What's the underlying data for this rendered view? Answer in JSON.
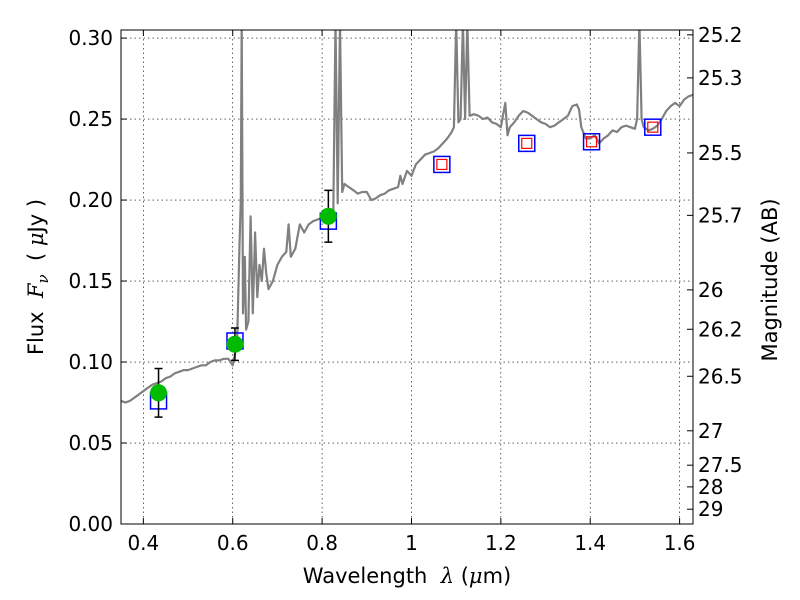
{
  "chart_data": {
    "type": "scatter",
    "xlabel": {
      "prefix": "Wavelength  ",
      "symbol": "λ",
      "unit_open": " (",
      "unit_mu": "μ",
      "unit_close": "m)"
    },
    "ylabel": {
      "prefix": "Flux  ",
      "symbol": "F",
      "subscript": "ν",
      "middle": "  ( ",
      "mu": "μ",
      "suffix": "Jy )"
    },
    "ylabel_right": "Magnitude (AB)",
    "xlim": [
      0.35,
      1.63
    ],
    "ylim": [
      0.0,
      0.305
    ],
    "x_ticks": [
      {
        "value": 0.4,
        "label": "0.4"
      },
      {
        "value": 0.6,
        "label": "0.6"
      },
      {
        "value": 0.8,
        "label": "0.8"
      },
      {
        "value": 1.0,
        "label": "1"
      },
      {
        "value": 1.2,
        "label": "1.2"
      },
      {
        "value": 1.4,
        "label": "1.4"
      },
      {
        "value": 1.6,
        "label": "1.6"
      }
    ],
    "y_ticks": [
      {
        "value": 0.0,
        "label": "0.00"
      },
      {
        "value": 0.05,
        "label": "0.05"
      },
      {
        "value": 0.1,
        "label": "0.10"
      },
      {
        "value": 0.15,
        "label": "0.15"
      },
      {
        "value": 0.2,
        "label": "0.20"
      },
      {
        "value": 0.25,
        "label": "0.25"
      },
      {
        "value": 0.3,
        "label": "0.30"
      }
    ],
    "right_ticks": [
      {
        "mag": 25.2,
        "label": "25.2"
      },
      {
        "mag": 25.3,
        "label": "25.3"
      },
      {
        "mag": 25.5,
        "label": "25.5"
      },
      {
        "mag": 25.7,
        "label": "25.7"
      },
      {
        "mag": 26,
        "label": "26"
      },
      {
        "mag": 26.2,
        "label": "26.2"
      },
      {
        "mag": 26.5,
        "label": "26.5"
      },
      {
        "mag": 27,
        "label": "27"
      },
      {
        "mag": 27.5,
        "label": "27.5"
      },
      {
        "mag": 28,
        "label": "28"
      },
      {
        "mag": 29,
        "label": "29"
      }
    ],
    "grid": true,
    "grid_style": "dotted",
    "colors": {
      "model": "#808080",
      "observed": "#00bb00",
      "model_box": "#0000ff",
      "inner_box": "#ff0000",
      "errorbar": "#000000"
    },
    "series": [
      {
        "type": "line",
        "points": [
          [
            0.35,
            0.076
          ],
          [
            0.36,
            0.075
          ],
          [
            0.37,
            0.076
          ],
          [
            0.38,
            0.078
          ],
          [
            0.39,
            0.08
          ],
          [
            0.4,
            0.082
          ],
          [
            0.41,
            0.084
          ],
          [
            0.42,
            0.086
          ],
          [
            0.43,
            0.087
          ],
          [
            0.44,
            0.088
          ],
          [
            0.45,
            0.09
          ],
          [
            0.46,
            0.091
          ],
          [
            0.47,
            0.093
          ],
          [
            0.48,
            0.094
          ],
          [
            0.49,
            0.095
          ],
          [
            0.5,
            0.095
          ],
          [
            0.51,
            0.096
          ],
          [
            0.52,
            0.097
          ],
          [
            0.53,
            0.098
          ],
          [
            0.54,
            0.098
          ],
          [
            0.55,
            0.1
          ],
          [
            0.56,
            0.101
          ],
          [
            0.57,
            0.101
          ],
          [
            0.58,
            0.102
          ],
          [
            0.59,
            0.102
          ],
          [
            0.595,
            0.1
          ],
          [
            0.6,
            0.098
          ],
          [
            0.605,
            0.105
          ],
          [
            0.61,
            0.115
          ],
          [
            0.615,
            0.17
          ],
          [
            0.618,
            0.2
          ],
          [
            0.62,
            0.31
          ],
          [
            0.623,
            0.13
          ],
          [
            0.627,
            0.165
          ],
          [
            0.63,
            0.12
          ],
          [
            0.635,
            0.125
          ],
          [
            0.64,
            0.19
          ],
          [
            0.645,
            0.13
          ],
          [
            0.65,
            0.18
          ],
          [
            0.655,
            0.14
          ],
          [
            0.66,
            0.16
          ],
          [
            0.665,
            0.15
          ],
          [
            0.67,
            0.17
          ],
          [
            0.675,
            0.155
          ],
          [
            0.68,
            0.145
          ],
          [
            0.69,
            0.15
          ],
          [
            0.7,
            0.16
          ],
          [
            0.71,
            0.165
          ],
          [
            0.72,
            0.168
          ],
          [
            0.725,
            0.185
          ],
          [
            0.73,
            0.165
          ],
          [
            0.74,
            0.17
          ],
          [
            0.75,
            0.185
          ],
          [
            0.76,
            0.18
          ],
          [
            0.77,
            0.185
          ],
          [
            0.78,
            0.187
          ],
          [
            0.79,
            0.188
          ],
          [
            0.8,
            0.189
          ],
          [
            0.81,
            0.19
          ],
          [
            0.82,
            0.19
          ],
          [
            0.825,
            0.192
          ],
          [
            0.83,
            0.31
          ],
          [
            0.835,
            0.198
          ],
          [
            0.84,
            0.31
          ],
          [
            0.845,
            0.205
          ],
          [
            0.85,
            0.21
          ],
          [
            0.86,
            0.208
          ],
          [
            0.87,
            0.206
          ],
          [
            0.88,
            0.204
          ],
          [
            0.89,
            0.205
          ],
          [
            0.9,
            0.205
          ],
          [
            0.91,
            0.2
          ],
          [
            0.92,
            0.201
          ],
          [
            0.93,
            0.203
          ],
          [
            0.94,
            0.204
          ],
          [
            0.95,
            0.206
          ],
          [
            0.96,
            0.207
          ],
          [
            0.97,
            0.208
          ],
          [
            0.975,
            0.215
          ],
          [
            0.98,
            0.21
          ],
          [
            0.99,
            0.218
          ],
          [
            1.0,
            0.215
          ],
          [
            1.01,
            0.222
          ],
          [
            1.02,
            0.225
          ],
          [
            1.03,
            0.228
          ],
          [
            1.04,
            0.229
          ],
          [
            1.05,
            0.23
          ],
          [
            1.06,
            0.232
          ],
          [
            1.07,
            0.235
          ],
          [
            1.08,
            0.238
          ],
          [
            1.09,
            0.242
          ],
          [
            1.095,
            0.245
          ],
          [
            1.1,
            0.31
          ],
          [
            1.105,
            0.248
          ],
          [
            1.11,
            0.25
          ],
          [
            1.115,
            0.31
          ],
          [
            1.12,
            0.25
          ],
          [
            1.125,
            0.31
          ],
          [
            1.13,
            0.252
          ],
          [
            1.14,
            0.253
          ],
          [
            1.15,
            0.252
          ],
          [
            1.16,
            0.25
          ],
          [
            1.17,
            0.251
          ],
          [
            1.18,
            0.248
          ],
          [
            1.19,
            0.247
          ],
          [
            1.2,
            0.245
          ],
          [
            1.21,
            0.26
          ],
          [
            1.215,
            0.24
          ],
          [
            1.22,
            0.245
          ],
          [
            1.23,
            0.248
          ],
          [
            1.24,
            0.252
          ],
          [
            1.25,
            0.255
          ],
          [
            1.26,
            0.254
          ],
          [
            1.27,
            0.252
          ],
          [
            1.28,
            0.25
          ],
          [
            1.29,
            0.248
          ],
          [
            1.3,
            0.247
          ],
          [
            1.31,
            0.245
          ],
          [
            1.32,
            0.246
          ],
          [
            1.33,
            0.248
          ],
          [
            1.34,
            0.25
          ],
          [
            1.35,
            0.252
          ],
          [
            1.36,
            0.258
          ],
          [
            1.37,
            0.259
          ],
          [
            1.375,
            0.256
          ],
          [
            1.38,
            0.245
          ],
          [
            1.39,
            0.238
          ],
          [
            1.4,
            0.238
          ],
          [
            1.41,
            0.24
          ],
          [
            1.42,
            0.235
          ],
          [
            1.43,
            0.238
          ],
          [
            1.44,
            0.24
          ],
          [
            1.45,
            0.243
          ],
          [
            1.46,
            0.242
          ],
          [
            1.47,
            0.245
          ],
          [
            1.48,
            0.246
          ],
          [
            1.49,
            0.245
          ],
          [
            1.5,
            0.244
          ],
          [
            1.505,
            0.25
          ],
          [
            1.51,
            0.31
          ],
          [
            1.515,
            0.25
          ],
          [
            1.52,
            0.245
          ],
          [
            1.53,
            0.243
          ],
          [
            1.54,
            0.244
          ],
          [
            1.55,
            0.246
          ],
          [
            1.56,
            0.25
          ],
          [
            1.57,
            0.255
          ],
          [
            1.58,
            0.258
          ],
          [
            1.59,
            0.26
          ],
          [
            1.6,
            0.258
          ],
          [
            1.61,
            0.262
          ],
          [
            1.62,
            0.264
          ],
          [
            1.63,
            0.265
          ]
        ]
      },
      {
        "type": "scatter",
        "marker": "circle",
        "points": [
          {
            "x": 0.434,
            "y": 0.081,
            "yerr": 0.015
          },
          {
            "x": 0.605,
            "y": 0.111,
            "yerr": 0.01
          },
          {
            "x": 0.814,
            "y": 0.19,
            "yerr": 0.016
          }
        ]
      },
      {
        "type": "scatter",
        "marker": "square",
        "points": [
          {
            "x": 0.434,
            "y": 0.076
          },
          {
            "x": 0.605,
            "y": 0.113
          },
          {
            "x": 0.814,
            "y": 0.187
          },
          {
            "x": 1.068,
            "y": 0.222
          },
          {
            "x": 1.258,
            "y": 0.235
          },
          {
            "x": 1.403,
            "y": 0.236
          },
          {
            "x": 1.54,
            "y": 0.245
          }
        ]
      }
    ]
  }
}
